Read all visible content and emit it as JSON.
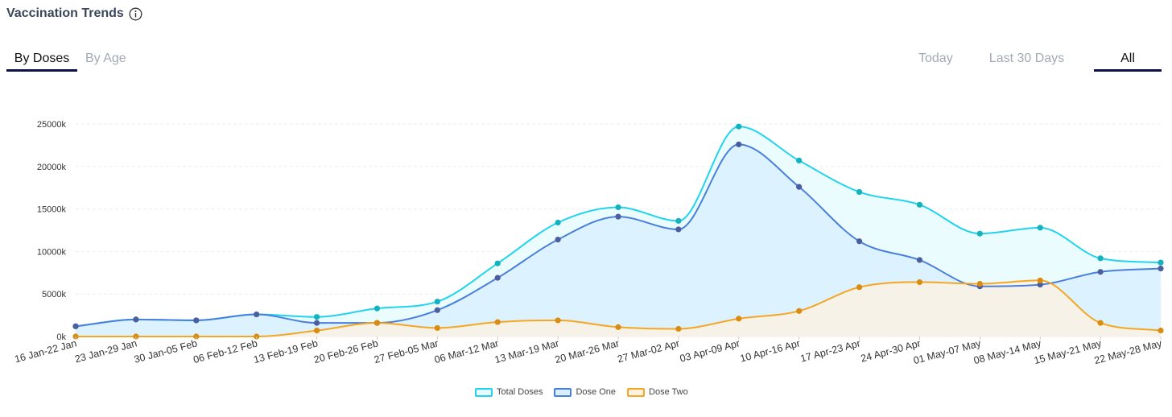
{
  "header": {
    "title": "Vaccination Trends",
    "info_icon": "info-circle-icon"
  },
  "tabs_left": [
    {
      "label": "By Doses",
      "active": true
    },
    {
      "label": "By Age",
      "active": false
    }
  ],
  "tabs_right": [
    {
      "label": "Today",
      "active": false
    },
    {
      "label": "Last 30 Days",
      "active": false
    },
    {
      "label": "All",
      "active": true
    }
  ],
  "chart_data": {
    "type": "area",
    "categories": [
      "16 Jan-22 Jan",
      "23 Jan-29 Jan",
      "30 Jan-05 Feb",
      "06 Feb-12 Feb",
      "13 Feb-19 Feb",
      "20 Feb-26 Feb",
      "27 Feb-05 Mar",
      "06 Mar-12 Mar",
      "13 Mar-19 Mar",
      "20 Mar-26 Mar",
      "27 Mar-02 Apr",
      "03 Apr-09 Apr",
      "10 Apr-16 Apr",
      "17 Apr-23 Apr",
      "24 Apr-30 Apr",
      "01 May-07 May",
      "08 May-14 May",
      "15 May-21 May",
      "22 May-28 May"
    ],
    "yticks": [
      "0k",
      "5000k",
      "10000k",
      "15000k",
      "20000k",
      "25000k"
    ],
    "ylim": [
      0,
      25000
    ],
    "y_unit": "thousands",
    "grid": true,
    "legend_position": "bottom",
    "series": [
      {
        "name": "Total Doses",
        "color": "#22d3ee",
        "fill": "#e6fbff",
        "dot": "#12b2bf",
        "values": [
          1200,
          2000,
          1900,
          2600,
          2300,
          3300,
          4100,
          8600,
          13400,
          15200,
          13600,
          24700,
          20700,
          17000,
          15500,
          12100,
          12800,
          9200,
          8700
        ]
      },
      {
        "name": "Dose One",
        "color": "#4a7fdb",
        "fill": "#d8efff",
        "dot": "#4d5e9e",
        "values": [
          1200,
          2000,
          1900,
          2600,
          1600,
          1600,
          3100,
          6900,
          11400,
          14100,
          12600,
          22600,
          17600,
          11200,
          9000,
          5900,
          6100,
          7600,
          8000
        ]
      },
      {
        "name": "Dose Two",
        "color": "#f5a623",
        "fill": "#fdf1e2",
        "dot": "#d98c10",
        "values": [
          0,
          0,
          0,
          0,
          700,
          1600,
          1000,
          1700,
          1900,
          1100,
          900,
          2100,
          3000,
          5800,
          6400,
          6200,
          6600,
          1600,
          700
        ]
      }
    ]
  }
}
